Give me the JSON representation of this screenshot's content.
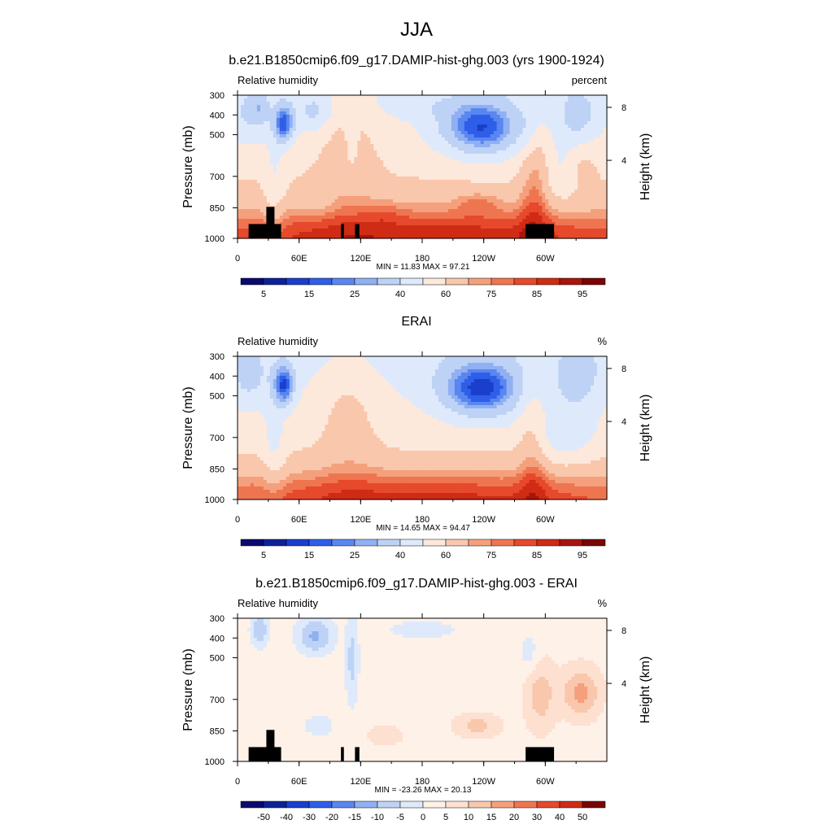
{
  "figure": {
    "title": "JJA"
  },
  "colors": {
    "rh_palette": [
      "#0a0a6e",
      "#0d2299",
      "#1a3fcc",
      "#2f5ee8",
      "#5a86f0",
      "#8fb0f2",
      "#bed2f6",
      "#deeafb",
      "#fde8dc",
      "#f9c7ac",
      "#f5a07c",
      "#ef7551",
      "#e6492c",
      "#cf2b15",
      "#a8150c",
      "#7a0505"
    ],
    "diff_palette": [
      "#0a0a6e",
      "#0d2299",
      "#1a3fcc",
      "#2f5ee8",
      "#5a86f0",
      "#8fb0f2",
      "#bed2f6",
      "#deeafb",
      "#fdf1e8",
      "#fde0d0",
      "#f9c7ac",
      "#f5a07c",
      "#ef7551",
      "#e6492c",
      "#cf2b15",
      "#7a0505"
    ],
    "topography": "#000000"
  },
  "chart_data": [
    {
      "type": "heatmap",
      "title": "b.e21.B1850cmip6.f09_g17.DAMIP-hist-ghg.003 (yrs 1900-1924)",
      "left_label": "Relative humidity",
      "right_label": "percent",
      "ylabel": "Pressure (mb)",
      "ylabel_right": "Height (km)",
      "x_ticks": [
        "0",
        "60E",
        "120E",
        "180",
        "120W",
        "60W"
      ],
      "y_ticks": [
        "300",
        "400",
        "500",
        "700",
        "850",
        "1000"
      ],
      "y_right_ticks": [
        "8",
        "4"
      ],
      "min_max": "MIN =  11.83  MAX =  97.21",
      "colorbar_labels": [
        "5",
        "15",
        "25",
        "40",
        "60",
        "75",
        "85",
        "95"
      ],
      "field": "model"
    },
    {
      "type": "heatmap",
      "title": "ERAI",
      "left_label": "Relative humidity",
      "right_label": "%",
      "ylabel": "Pressure (mb)",
      "ylabel_right": "Height (km)",
      "x_ticks": [
        "0",
        "60E",
        "120E",
        "180",
        "120W",
        "60W"
      ],
      "y_ticks": [
        "300",
        "400",
        "500",
        "700",
        "850",
        "1000"
      ],
      "y_right_ticks": [
        "8",
        "4"
      ],
      "min_max": "MIN =  14.65  MAX =  94.47",
      "colorbar_labels": [
        "5",
        "15",
        "25",
        "40",
        "60",
        "75",
        "85",
        "95"
      ],
      "field": "obs"
    },
    {
      "type": "heatmap",
      "title": "b.e21.B1850cmip6.f09_g17.DAMIP-hist-ghg.003 - ERAI",
      "left_label": "Relative humidity",
      "right_label": "%",
      "ylabel": "Pressure (mb)",
      "ylabel_right": "Height (km)",
      "x_ticks": [
        "0",
        "60E",
        "120E",
        "180",
        "120W",
        "60W"
      ],
      "y_ticks": [
        "300",
        "400",
        "500",
        "700",
        "850",
        "1000"
      ],
      "y_right_ticks": [
        "8",
        "4"
      ],
      "min_max": "MIN = -23.26  MAX =  20.13",
      "colorbar_labels": [
        "-50",
        "-40",
        "-30",
        "-20",
        "-15",
        "-10",
        "-5",
        "0",
        "5",
        "10",
        "15",
        "20",
        "30",
        "40",
        "50"
      ],
      "field": "diff"
    }
  ]
}
